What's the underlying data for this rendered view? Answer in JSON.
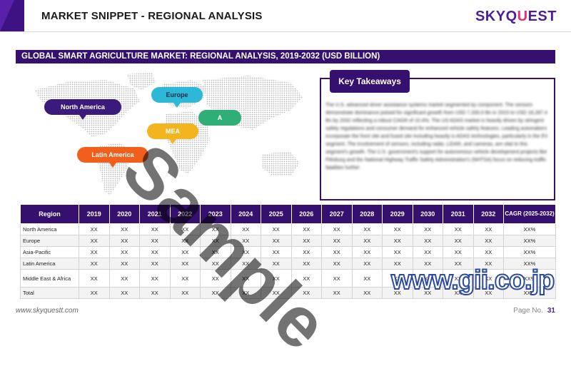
{
  "header": {
    "title": "MARKET SNIPPET - REGIONAL ANALYSIS",
    "logo_main": "SKYQ",
    "logo_accent": "U",
    "logo_end": "EST"
  },
  "section": {
    "title": "GLOBAL SMART AGRICULTURE MARKET: REGIONAL ANALYSIS, 2019-2032 (USD BILLION)"
  },
  "map": {
    "labels": {
      "north_america": "North America",
      "europe": "Europe",
      "asia_pacific": "A",
      "mea": "MEA",
      "latin_america": "Latin America"
    }
  },
  "takeaways": {
    "title": "Key Takeaways",
    "body": "The U.S. advanced driver assistance systems market segmented by component. The sensors demonstrate dominance poised for significant growth from USD 7,330.0 Bn in 2023 to USD 18,287.4 Bn by 2032 reflecting a robust CAGR of 10.4%. The US ADAS market is heavily driven by stringent safety regulations and consumer demand for enhanced vehicle safety features. Leading automakers incorporate the front site and fused site including heavily in ADAS technologies, particularly in the EV segment. The involvement of sensors, including radar, LiDAR, and cameras, are vital to this segment's growth. The U.S. government's support for autonomous vehicle development projects like Pittsburg and the National Highway Traffic Safety Administration's (NHTSA) focus on reducing traffic fatalities further"
  },
  "table": {
    "headers": [
      "Region",
      "2019",
      "2020",
      "2021",
      "2022",
      "2023",
      "2024",
      "2025",
      "2026",
      "2027",
      "2028",
      "2029",
      "2030",
      "2031",
      "2032",
      "CAGR (2025-2032)"
    ],
    "rows": [
      {
        "region": "North America",
        "cells": [
          "XX",
          "XX",
          "XX",
          "XX",
          "XX",
          "XX",
          "XX",
          "XX",
          "XX",
          "XX",
          "XX",
          "XX",
          "XX",
          "XX",
          "XX%"
        ]
      },
      {
        "region": "Europe",
        "cells": [
          "XX",
          "XX",
          "XX",
          "XX",
          "XX",
          "XX",
          "XX",
          "XX",
          "XX",
          "XX",
          "XX",
          "XX",
          "XX",
          "XX",
          "XX%"
        ]
      },
      {
        "region": "Asia-Pacific",
        "cells": [
          "XX",
          "XX",
          "XX",
          "XX",
          "XX",
          "XX",
          "XX",
          "XX",
          "XX",
          "XX",
          "XX",
          "XX",
          "XX",
          "XX",
          "XX%"
        ]
      },
      {
        "region": "Latin America",
        "cells": [
          "XX",
          "XX",
          "XX",
          "XX",
          "XX",
          "XX",
          "XX",
          "XX",
          "XX",
          "XX",
          "XX",
          "XX",
          "XX",
          "XX",
          "XX%"
        ]
      },
      {
        "region": "Middle East & Africa",
        "cells": [
          "XX",
          "XX",
          "XX",
          "XX",
          "XX",
          "XX",
          "XX",
          "XX",
          "XX",
          "XX",
          "XX",
          "XX",
          "XX",
          "XX",
          "XX%"
        ]
      },
      {
        "region": "Total",
        "cells": [
          "XX",
          "XX",
          "XX",
          "XX",
          "XX",
          "XX",
          "XX",
          "XX",
          "XX",
          "XX",
          "XX",
          "XX",
          "XX",
          "XX",
          "XX%"
        ]
      }
    ]
  },
  "footer": {
    "url": "www.skyquestt.com",
    "page_label": "Page No.",
    "page_number": "31"
  },
  "watermark": {
    "text": "Sample",
    "source": "www.gii.co.jp"
  },
  "colors": {
    "primary": "#36106f",
    "accent": "#e8306e",
    "na": "#3a1a7a",
    "europe": "#2cb8d6",
    "apac": "#2fae77",
    "mea": "#f2b51f",
    "latam": "#f25f1d"
  }
}
